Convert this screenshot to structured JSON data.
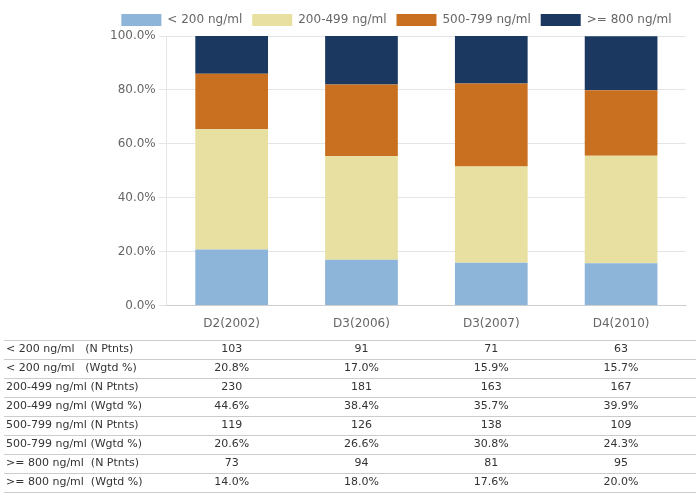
{
  "chart_data": {
    "type": "bar",
    "stacked": true,
    "categories": [
      "D2(2002)",
      "D3(2006)",
      "D3(2007)",
      "D4(2010)"
    ],
    "series": [
      {
        "name": "< 200 ng/ml",
        "color": "#8db4d9",
        "values": [
          20.8,
          17.0,
          15.9,
          15.7
        ]
      },
      {
        "name": "200-499 ng/ml",
        "color": "#e8e0a0",
        "values": [
          44.6,
          38.4,
          35.7,
          39.9
        ]
      },
      {
        "name": "500-799 ng/ml",
        "color": "#c87020",
        "values": [
          20.6,
          26.6,
          30.8,
          24.3
        ]
      },
      {
        "name": ">= 800 ng/ml",
        "color": "#1a3860",
        "values": [
          14.0,
          18.0,
          17.6,
          20.0
        ]
      }
    ],
    "ylim": [
      0,
      100
    ],
    "yticks": [
      {
        "value": 0,
        "label": "0.0%"
      },
      {
        "value": 20,
        "label": "20.0%"
      },
      {
        "value": 40,
        "label": "40.0%"
      },
      {
        "value": 60,
        "label": "60.0%"
      },
      {
        "value": 80,
        "label": "80.0%"
      },
      {
        "value": 100,
        "label": "100.0%"
      }
    ],
    "grid": true,
    "legend": "top",
    "table_rows": [
      {
        "label": "< 200 ng/ml   (N Ptnts)",
        "values": [
          "103",
          "91",
          "71",
          "63"
        ]
      },
      {
        "label": "< 200 ng/ml   (Wgtd %)",
        "values": [
          "20.8%",
          "17.0%",
          "15.9%",
          "15.7%"
        ]
      },
      {
        "label": "200-499 ng/ml (N Ptnts)",
        "values": [
          "230",
          "181",
          "163",
          "167"
        ]
      },
      {
        "label": "200-499 ng/ml (Wgtd %)",
        "values": [
          "44.6%",
          "38.4%",
          "35.7%",
          "39.9%"
        ]
      },
      {
        "label": "500-799 ng/ml (N Ptnts)",
        "values": [
          "119",
          "126",
          "138",
          "109"
        ]
      },
      {
        "label": "500-799 ng/ml (Wgtd %)",
        "values": [
          "20.6%",
          "26.6%",
          "30.8%",
          "24.3%"
        ]
      },
      {
        "label": ">= 800 ng/ml  (N Ptnts)",
        "values": [
          "73",
          "94",
          "81",
          "95"
        ]
      },
      {
        "label": ">= 800 ng/ml  (Wgtd %)",
        "values": [
          "14.0%",
          "18.0%",
          "17.6%",
          "20.0%"
        ]
      }
    ]
  }
}
